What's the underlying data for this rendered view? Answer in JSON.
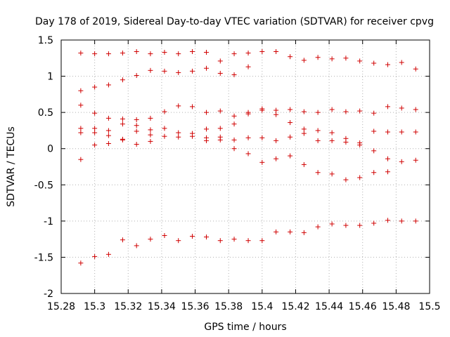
{
  "chart_data": {
    "type": "scatter",
    "title": "Day 178 of 2019, Sidereal Day-to-day VTEC variation (SDTVAR) for receiver cpvg",
    "xlabel": "GPS time / hours",
    "ylabel": "SDTVAR / TECUs",
    "xlim": [
      15.28,
      15.5
    ],
    "ylim": [
      -2,
      1.5
    ],
    "xticks": [
      "15.28",
      "15.3",
      "15.32",
      "15.34",
      "15.36",
      "15.38",
      "15.4",
      "15.42",
      "15.44",
      "15.46",
      "15.48",
      "15.5"
    ],
    "yticks": [
      "-2",
      "-1.5",
      "-1",
      "-0.5",
      "0",
      "0.5",
      "1",
      "1.5"
    ],
    "marker": "+",
    "color": "#d00000",
    "series": [
      {
        "name": "observations",
        "points": [
          [
            15.2917,
            1.32
          ],
          [
            15.2917,
            0.8
          ],
          [
            15.2917,
            0.6
          ],
          [
            15.2917,
            0.28
          ],
          [
            15.2917,
            0.22
          ],
          [
            15.2917,
            -0.15
          ],
          [
            15.2917,
            -1.58
          ],
          [
            15.3,
            1.31
          ],
          [
            15.3,
            0.85
          ],
          [
            15.3,
            0.49
          ],
          [
            15.3,
            0.28
          ],
          [
            15.3,
            0.22
          ],
          [
            15.3,
            0.05
          ],
          [
            15.3,
            -1.49
          ],
          [
            15.3083,
            1.31
          ],
          [
            15.3083,
            0.88
          ],
          [
            15.3083,
            0.42
          ],
          [
            15.3083,
            0.25
          ],
          [
            15.3083,
            0.18
          ],
          [
            15.3083,
            0.07
          ],
          [
            15.3083,
            -1.46
          ],
          [
            15.3167,
            1.32
          ],
          [
            15.3167,
            0.95
          ],
          [
            15.3167,
            0.41
          ],
          [
            15.3167,
            0.34
          ],
          [
            15.3167,
            0.13
          ],
          [
            15.3167,
            0.12
          ],
          [
            15.3167,
            -1.26
          ],
          [
            15.325,
            1.34
          ],
          [
            15.325,
            1.01
          ],
          [
            15.325,
            0.4
          ],
          [
            15.325,
            0.32
          ],
          [
            15.325,
            0.24
          ],
          [
            15.325,
            0.06
          ],
          [
            15.325,
            -1.34
          ],
          [
            15.3333,
            1.31
          ],
          [
            15.3333,
            1.08
          ],
          [
            15.3333,
            0.42
          ],
          [
            15.3333,
            0.26
          ],
          [
            15.3333,
            0.19
          ],
          [
            15.3333,
            0.1
          ],
          [
            15.3333,
            -1.25
          ],
          [
            15.3417,
            1.33
          ],
          [
            15.3417,
            1.07
          ],
          [
            15.3417,
            0.51
          ],
          [
            15.3417,
            0.28
          ],
          [
            15.3417,
            0.17
          ],
          [
            15.3417,
            -1.2
          ],
          [
            15.35,
            1.31
          ],
          [
            15.35,
            1.05
          ],
          [
            15.35,
            0.59
          ],
          [
            15.35,
            0.22
          ],
          [
            15.35,
            0.16
          ],
          [
            15.35,
            -1.27
          ],
          [
            15.3583,
            1.34
          ],
          [
            15.3583,
            1.07
          ],
          [
            15.3583,
            0.58
          ],
          [
            15.3583,
            0.21
          ],
          [
            15.3583,
            0.17
          ],
          [
            15.3583,
            -1.21
          ],
          [
            15.3667,
            1.33
          ],
          [
            15.3667,
            1.11
          ],
          [
            15.3667,
            0.5
          ],
          [
            15.3667,
            0.27
          ],
          [
            15.3667,
            0.15
          ],
          [
            15.3667,
            0.11
          ],
          [
            15.3667,
            -1.22
          ],
          [
            15.375,
            1.21
          ],
          [
            15.375,
            1.04
          ],
          [
            15.375,
            0.52
          ],
          [
            15.375,
            0.28
          ],
          [
            15.375,
            0.16
          ],
          [
            15.375,
            0.12
          ],
          [
            15.375,
            -1.27
          ],
          [
            15.3833,
            1.31
          ],
          [
            15.3833,
            1.02
          ],
          [
            15.3833,
            0.45
          ],
          [
            15.3833,
            0.34
          ],
          [
            15.3833,
            0.12
          ],
          [
            15.3833,
            0.0
          ],
          [
            15.3833,
            -1.25
          ],
          [
            15.3917,
            1.32
          ],
          [
            15.3917,
            1.13
          ],
          [
            15.3917,
            0.5
          ],
          [
            15.3917,
            0.48
          ],
          [
            15.3917,
            0.15
          ],
          [
            15.3917,
            -0.07
          ],
          [
            15.3917,
            -1.27
          ],
          [
            15.4,
            1.34
          ],
          [
            15.4,
            0.55
          ],
          [
            15.4,
            0.53
          ],
          [
            15.4,
            0.15
          ],
          [
            15.4,
            -0.19
          ],
          [
            15.4,
            -1.27
          ],
          [
            15.4083,
            1.34
          ],
          [
            15.4083,
            0.53
          ],
          [
            15.4083,
            0.47
          ],
          [
            15.4083,
            0.11
          ],
          [
            15.4083,
            -0.14
          ],
          [
            15.4083,
            -1.15
          ],
          [
            15.4167,
            1.27
          ],
          [
            15.4167,
            0.54
          ],
          [
            15.4167,
            0.36
          ],
          [
            15.4167,
            0.16
          ],
          [
            15.4167,
            -0.1
          ],
          [
            15.4167,
            -1.15
          ],
          [
            15.425,
            1.22
          ],
          [
            15.425,
            0.51
          ],
          [
            15.425,
            0.27
          ],
          [
            15.425,
            0.21
          ],
          [
            15.425,
            -0.22
          ],
          [
            15.425,
            -1.16
          ],
          [
            15.4333,
            1.26
          ],
          [
            15.4333,
            0.5
          ],
          [
            15.4333,
            0.25
          ],
          [
            15.4333,
            0.11
          ],
          [
            15.4333,
            -0.33
          ],
          [
            15.4333,
            -1.08
          ],
          [
            15.4417,
            1.24
          ],
          [
            15.4417,
            0.54
          ],
          [
            15.4417,
            0.22
          ],
          [
            15.4417,
            0.11
          ],
          [
            15.4417,
            -0.35
          ],
          [
            15.4417,
            -1.04
          ],
          [
            15.45,
            1.25
          ],
          [
            15.45,
            0.51
          ],
          [
            15.45,
            0.14
          ],
          [
            15.45,
            0.09
          ],
          [
            15.45,
            -0.43
          ],
          [
            15.45,
            -1.06
          ],
          [
            15.4583,
            1.21
          ],
          [
            15.4583,
            0.52
          ],
          [
            15.4583,
            0.08
          ],
          [
            15.4583,
            0.05
          ],
          [
            15.4583,
            -0.4
          ],
          [
            15.4583,
            -1.06
          ],
          [
            15.4667,
            1.18
          ],
          [
            15.4667,
            0.49
          ],
          [
            15.4667,
            0.24
          ],
          [
            15.4667,
            -0.03
          ],
          [
            15.4667,
            -0.33
          ],
          [
            15.4667,
            -1.03
          ],
          [
            15.475,
            1.16
          ],
          [
            15.475,
            0.58
          ],
          [
            15.475,
            0.23
          ],
          [
            15.475,
            -0.14
          ],
          [
            15.475,
            -0.32
          ],
          [
            15.475,
            -0.99
          ],
          [
            15.4833,
            1.19
          ],
          [
            15.4833,
            0.56
          ],
          [
            15.4833,
            0.23
          ],
          [
            15.4833,
            -0.18
          ],
          [
            15.4833,
            -1.0
          ],
          [
            15.4917,
            1.1
          ],
          [
            15.4917,
            0.54
          ],
          [
            15.4917,
            0.23
          ],
          [
            15.4917,
            -0.16
          ],
          [
            15.4917,
            -1.0
          ]
        ]
      }
    ]
  }
}
